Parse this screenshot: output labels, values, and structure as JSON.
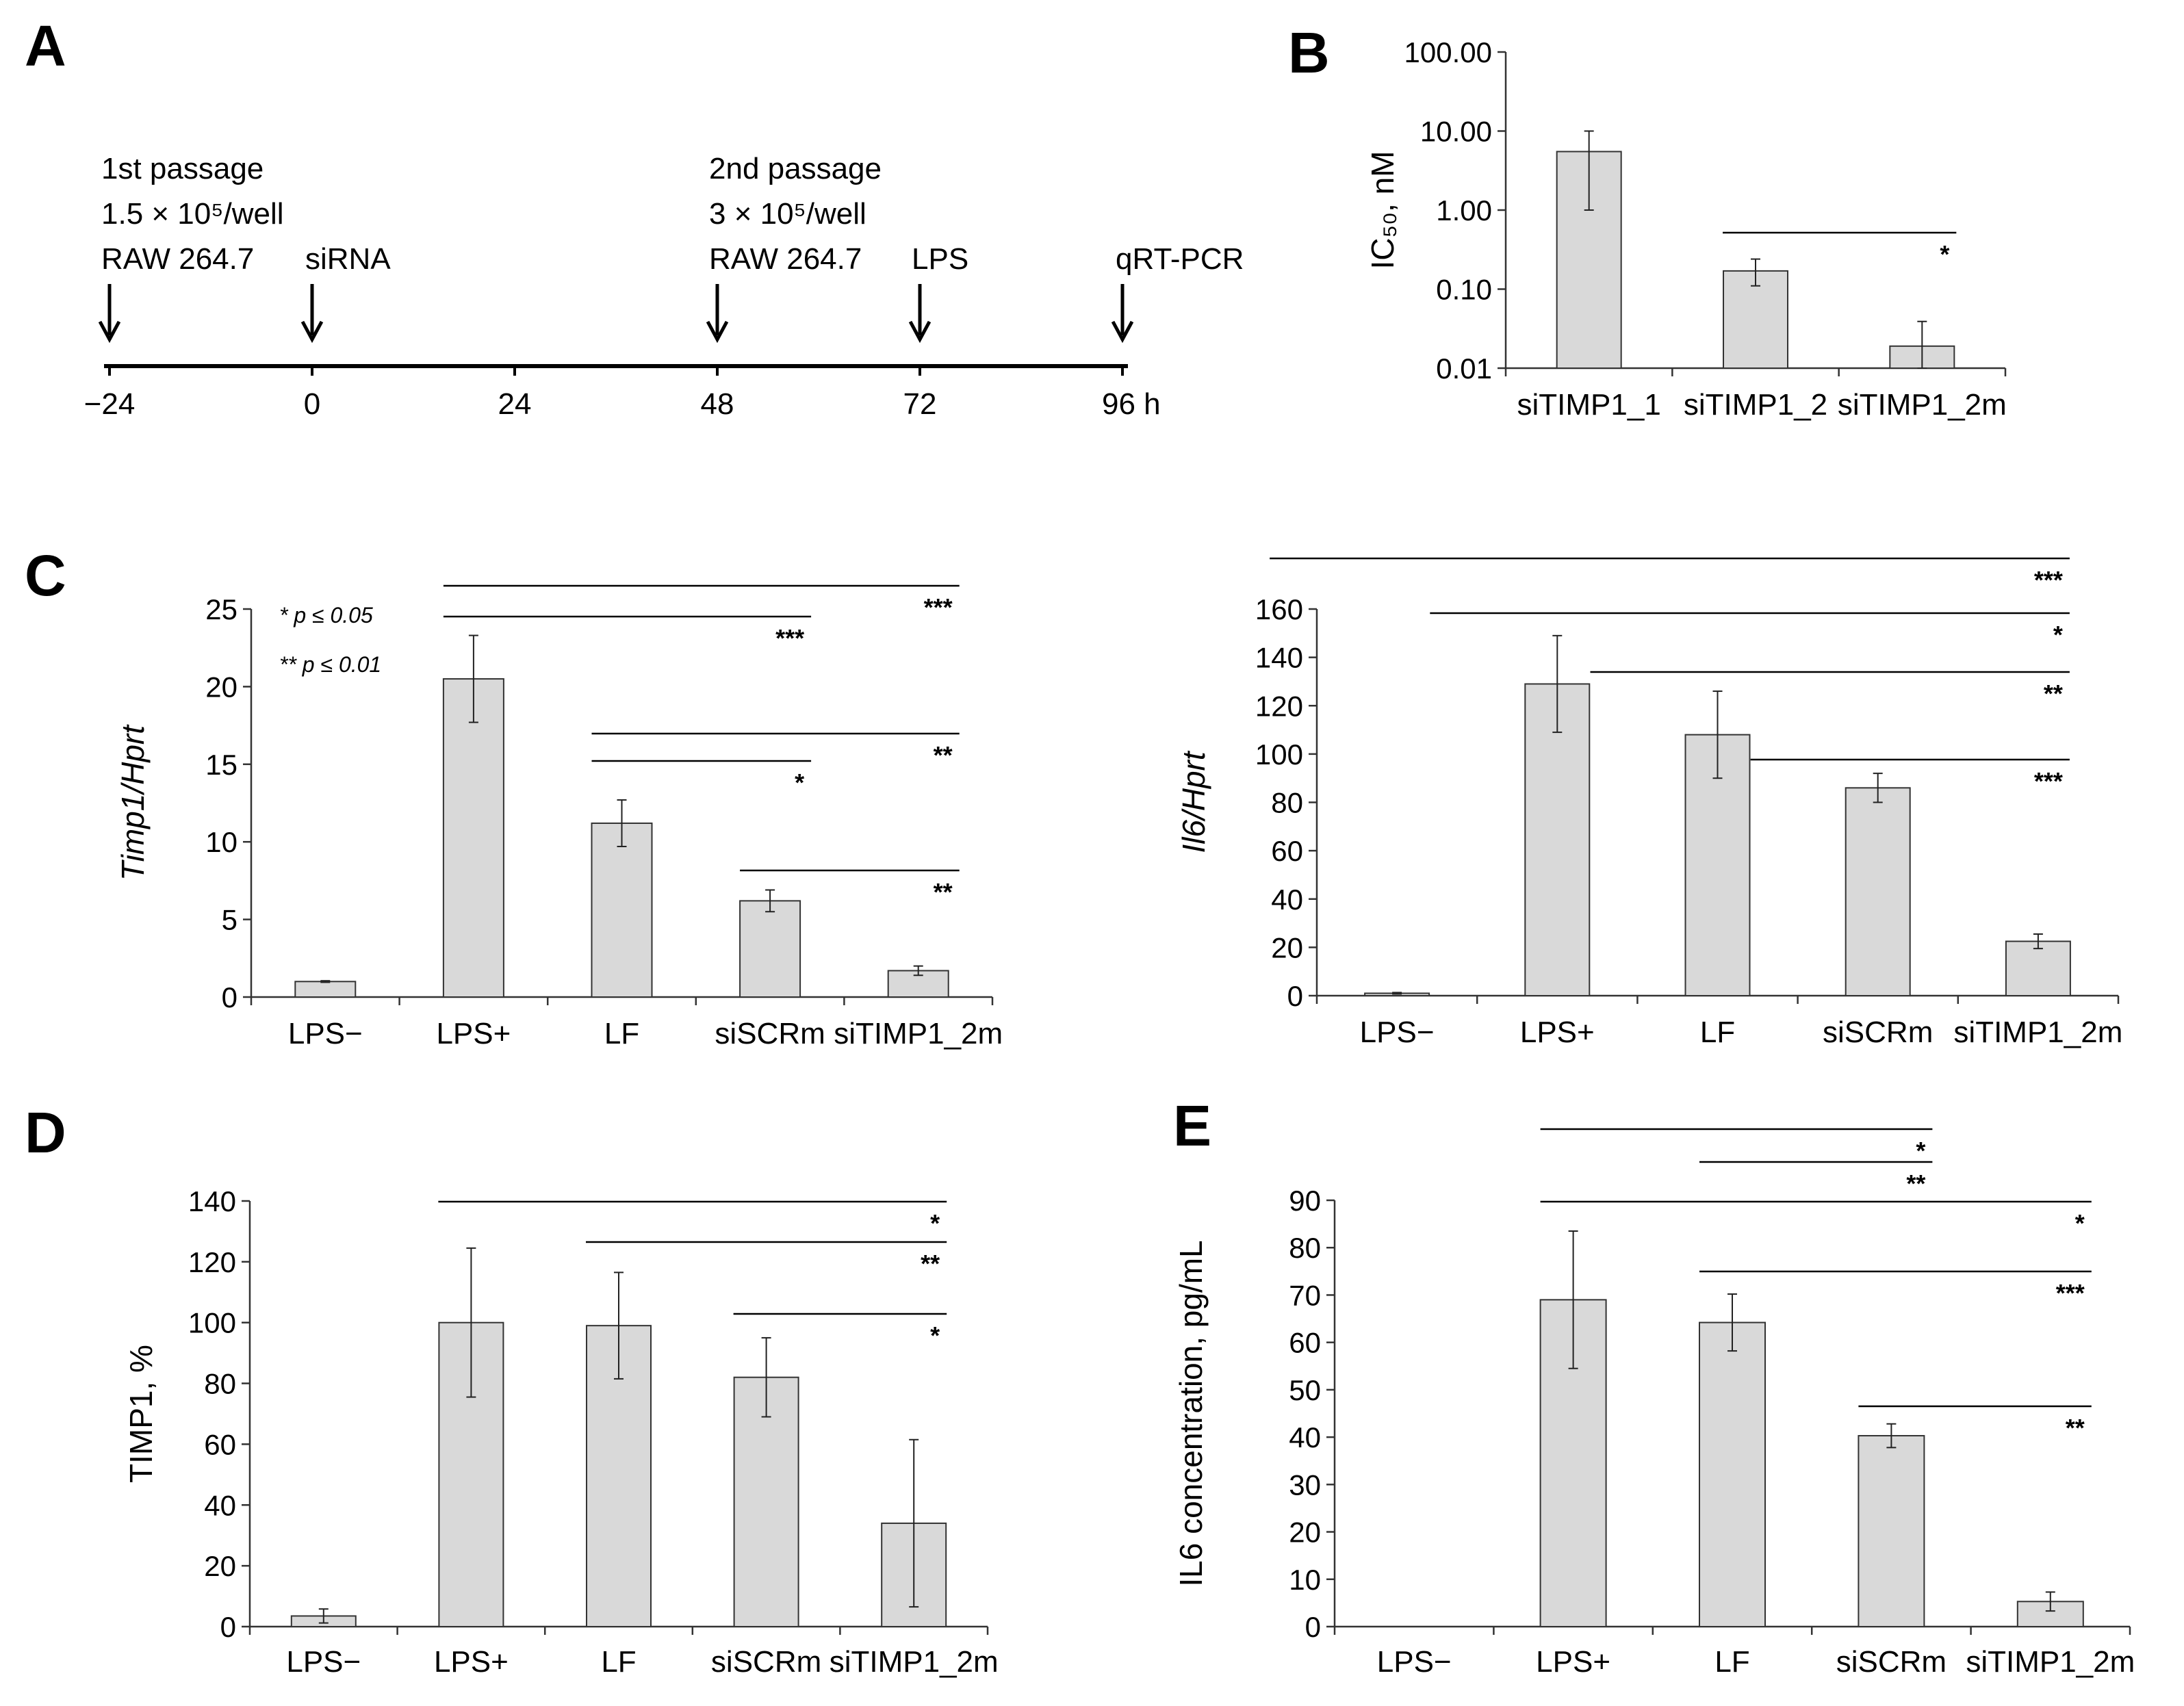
{
  "panel_labels": {
    "a": "A",
    "b": "B",
    "c": "C",
    "d": "D",
    "e": "E"
  },
  "timeline": {
    "ticks": [
      "−24",
      "0",
      "24",
      "48",
      "72",
      "96 h"
    ],
    "events": [
      {
        "lines": [
          "1st passage",
          "1.5 × 10⁵/well",
          "RAW 264.7"
        ],
        "at": "−24"
      },
      {
        "lines": [
          "siRNA"
        ],
        "at": "0"
      },
      {
        "lines": [
          "2nd passage",
          "3 × 10⁵/well",
          "RAW 264.7"
        ],
        "at": "48"
      },
      {
        "lines": [
          "LPS"
        ],
        "at": "72"
      },
      {
        "lines": [
          "qRT-PCR"
        ],
        "at": "96 h"
      }
    ]
  },
  "legend": {
    "p05": "*  p ≤ 0.05",
    "p01": "** p ≤ 0.01"
  },
  "chart_data": [
    {
      "id": "B",
      "type": "bar",
      "scale": "log",
      "ylabel": "IC₅₀, nM",
      "ylim": [
        0.01,
        100
      ],
      "yticks": [
        "100.00",
        "10.00",
        "1.00",
        "0.10",
        "0.01"
      ],
      "categories": [
        "siTIMP1_1",
        "siTIMP1_2",
        "siTIMP1_2m"
      ],
      "values": [
        5.5,
        0.17,
        0.019
      ],
      "err_low": [
        1.0,
        0.11,
        0.01
      ],
      "err_high": [
        10.0,
        0.24,
        0.039
      ],
      "sig": [
        {
          "from": 1,
          "to": 2,
          "stars": "*"
        }
      ]
    },
    {
      "id": "C-left",
      "type": "bar",
      "ylabel": "Timp1/Hprt",
      "ylim": [
        0,
        25
      ],
      "yticks": [
        "0",
        "5",
        "10",
        "15",
        "20",
        "25"
      ],
      "categories": [
        "LPS−",
        "LPS+",
        "LF",
        "siSCRm",
        "siTIMP1_2m"
      ],
      "values": [
        1.0,
        20.5,
        11.2,
        6.2,
        1.7
      ],
      "errors": [
        0.05,
        2.8,
        1.5,
        0.7,
        0.3
      ],
      "sig": [
        {
          "from": 1,
          "to": 4,
          "stars": "***"
        },
        {
          "from": 1,
          "to": 3,
          "stars": "***"
        },
        {
          "from": 2,
          "to": 4,
          "stars": "**"
        },
        {
          "from": 2,
          "to": 3,
          "stars": "*"
        },
        {
          "from": 3,
          "to": 4,
          "stars": "**"
        }
      ]
    },
    {
      "id": "C-right",
      "type": "bar",
      "ylabel": "Il6/Hprt",
      "ylim": [
        0,
        160
      ],
      "yticks": [
        "0",
        "20",
        "40",
        "60",
        "80",
        "100",
        "120",
        "140",
        "160"
      ],
      "categories": [
        "LPS−",
        "LPS+",
        "LF",
        "siSCRm",
        "siTIMP1_2m"
      ],
      "values": [
        1.0,
        129,
        108,
        86,
        22.5
      ],
      "errors": [
        0.3,
        20,
        18,
        6,
        3
      ],
      "sig": [
        {
          "from": 0,
          "to": 4,
          "stars": "***"
        },
        {
          "from": 1,
          "to": 4,
          "stars": "*"
        },
        {
          "from": 2,
          "to": 4,
          "stars": "**"
        },
        {
          "from": 3,
          "to": 4,
          "stars": "***"
        }
      ]
    },
    {
      "id": "D",
      "type": "bar",
      "ylabel": "TIMP1, %",
      "ylim": [
        0,
        140
      ],
      "yticks": [
        "0",
        "20",
        "40",
        "60",
        "80",
        "100",
        "120",
        "140"
      ],
      "categories": [
        "LPS−",
        "LPS+",
        "LF",
        "siSCRm",
        "siTIMP1_2m"
      ],
      "values": [
        3.5,
        100,
        99,
        82,
        34
      ],
      "errors": [
        2.3,
        24.5,
        17.5,
        13,
        27.5
      ],
      "sig": [
        {
          "from": 1,
          "to": 4,
          "stars": "*"
        },
        {
          "from": 2,
          "to": 4,
          "stars": "**"
        },
        {
          "from": 3,
          "to": 4,
          "stars": "*"
        }
      ]
    },
    {
      "id": "E",
      "type": "bar",
      "ylabel": "IL6 concentration, pg/mL",
      "ylim": [
        0,
        90
      ],
      "yticks": [
        "0",
        "10",
        "20",
        "30",
        "40",
        "50",
        "60",
        "70",
        "80",
        "90"
      ],
      "categories": [
        "LPS−",
        "LPS+",
        "LF",
        "siSCRm",
        "siTIMP1_2m"
      ],
      "values": [
        0,
        69,
        64.2,
        40.3,
        5.3
      ],
      "errors": [
        0,
        14.5,
        6,
        2.5,
        2
      ],
      "sig": [
        {
          "from": 1,
          "to": 3,
          "stars": "*"
        },
        {
          "from": 2,
          "to": 3,
          "stars": "**"
        },
        {
          "from": 1,
          "to": 4,
          "stars": "*"
        },
        {
          "from": 2,
          "to": 4,
          "stars": "***"
        },
        {
          "from": 3,
          "to": 4,
          "stars": "**"
        }
      ]
    }
  ]
}
